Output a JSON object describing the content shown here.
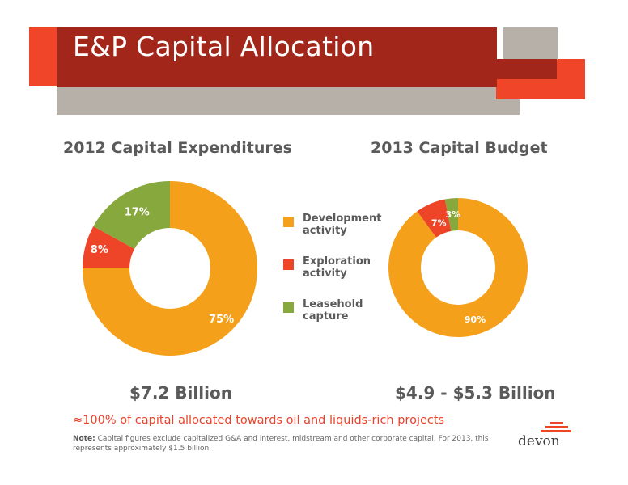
{
  "slide": {
    "title": "E&P Capital Allocation",
    "headline": "≈100% of capital allocated towards oil and liquids-rich projects",
    "note_label": "Note:",
    "note_text": "Capital figures exclude capitalized G&A and interest, midstream and other corporate capital. For 2013, this represents approximately $1.5 billion.",
    "logo_text": "devon"
  },
  "colors": {
    "banner_dark": "#a3261b",
    "banner_red": "#f04528",
    "banner_gray": "#b6b0a8",
    "development": "#f5a01b",
    "exploration": "#ee4427",
    "leasehold": "#86a83c"
  },
  "legend": [
    {
      "label": "Development activity",
      "color": "#f5a01b"
    },
    {
      "label": "Exploration activity",
      "color": "#ee4427"
    },
    {
      "label": "Leasehold capture",
      "color": "#86a83c"
    }
  ],
  "chart_data": [
    {
      "type": "pie",
      "title": "2012 Capital Expenditures",
      "total_label": "$7.2 Billion",
      "categories": [
        "Development activity",
        "Exploration activity",
        "Leasehold capture"
      ],
      "values": [
        75,
        8,
        17
      ],
      "labels": [
        "75%",
        "8%",
        "17%"
      ],
      "colors": [
        "#f5a01b",
        "#ee4427",
        "#86a83c"
      ]
    },
    {
      "type": "pie",
      "title": "2013 Capital Budget",
      "total_label": "$4.9 - $5.3 Billion",
      "categories": [
        "Development activity",
        "Exploration activity",
        "Leasehold capture"
      ],
      "values": [
        90,
        7,
        3
      ],
      "labels": [
        "90%",
        "7%",
        "3%"
      ],
      "colors": [
        "#f5a01b",
        "#ee4427",
        "#86a83c"
      ]
    }
  ]
}
